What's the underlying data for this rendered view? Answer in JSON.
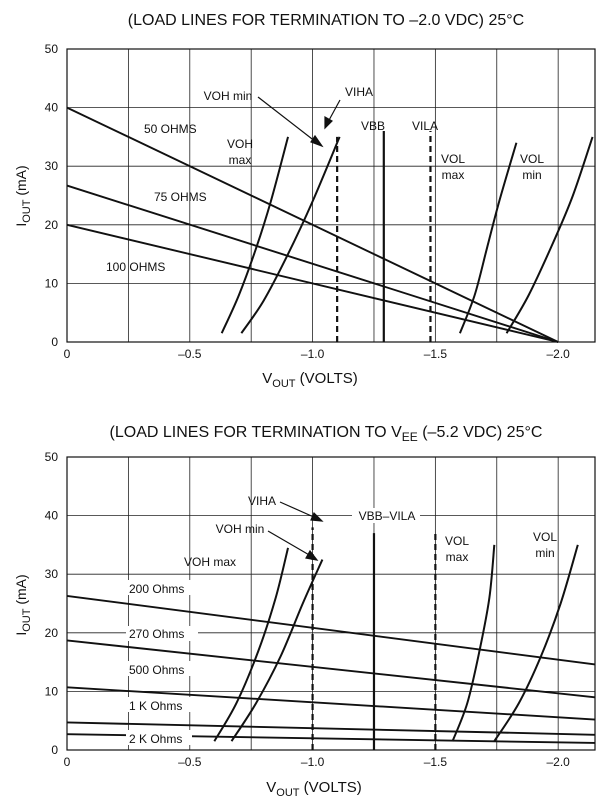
{
  "chart_data": [
    {
      "type": "line",
      "title": "(LOAD LINES FOR TERMINATION TO –2.0 VDC) 25°C",
      "xlabel": {
        "main": "V",
        "sub": "OUT",
        "rest": " (VOLTS)"
      },
      "ylabel": {
        "main": "I",
        "sub": "OUT",
        "rest": " (mA)"
      },
      "xlim": [
        0,
        -2.15
      ],
      "ylim": [
        0,
        50
      ],
      "x_ticks": [
        {
          "value": 0,
          "label": "0"
        },
        {
          "value": -0.5,
          "label": "–0.5"
        },
        {
          "value": -1.0,
          "label": "–1.0"
        },
        {
          "value": -1.5,
          "label": "–1.5"
        },
        {
          "value": -2.0,
          "label": "–2.0"
        }
      ],
      "y_ticks": [
        0,
        10,
        20,
        30,
        40,
        50
      ],
      "vgrid": [
        -0.25,
        -0.5,
        -0.75,
        -1.0,
        -1.25,
        -1.5,
        -1.75,
        -2.0
      ],
      "hgrid": [
        10,
        20,
        30,
        40
      ],
      "load_lines": [
        {
          "label": "50 OHMS",
          "x0": 0,
          "y0": 40,
          "x1": -2.0,
          "y1": 0
        },
        {
          "label": "75 OHMS",
          "x0": 0,
          "y0": 26.7,
          "x1": -2.0,
          "y1": 0
        },
        {
          "label": "100 OHMS",
          "x0": 0,
          "y0": 20,
          "x1": -2.0,
          "y1": 0
        }
      ],
      "curves": [
        {
          "label": "VOH max",
          "points": [
            [
              -0.63,
              1.5
            ],
            [
              -0.7,
              8
            ],
            [
              -0.77,
              16
            ],
            [
              -0.83,
              24
            ],
            [
              -0.9,
              35
            ]
          ]
        },
        {
          "label": "VOH min",
          "points": [
            [
              -0.71,
              1.5
            ],
            [
              -0.8,
              7
            ],
            [
              -0.9,
              15
            ],
            [
              -1.0,
              24
            ],
            [
              -1.11,
              35
            ]
          ]
        },
        {
          "label": "VOL max",
          "points": [
            [
              -1.6,
              1.5
            ],
            [
              -1.66,
              8
            ],
            [
              -1.71,
              16
            ],
            [
              -1.76,
              24
            ],
            [
              -1.83,
              34
            ]
          ]
        },
        {
          "label": "VOL min",
          "points": [
            [
              -1.79,
              1.5
            ],
            [
              -1.88,
              8
            ],
            [
              -1.98,
              17
            ],
            [
              -2.06,
              25
            ],
            [
              -2.14,
              35
            ]
          ]
        }
      ],
      "levels": [
        {
          "label": "VIHA",
          "x": -1.1,
          "style": "dashed",
          "top": 35
        },
        {
          "label": "VBB",
          "x": -1.29,
          "style": "solid",
          "top": 36
        },
        {
          "label": "VILA",
          "x": -1.48,
          "style": "dashed",
          "top": 36
        }
      ]
    },
    {
      "type": "line",
      "title": {
        "pre": "(LOAD LINES FOR TERMINATION TO V",
        "sub": "EE",
        "post": " (–5.2 VDC) 25°C"
      },
      "xlabel": {
        "main": "V",
        "sub": "OUT",
        "rest": " (VOLTS)"
      },
      "ylabel": {
        "main": "I",
        "sub": "OUT",
        "rest": " (mA)"
      },
      "xlim": [
        0,
        -2.15
      ],
      "ylim": [
        0,
        50
      ],
      "x_ticks": [
        {
          "value": 0,
          "label": "0"
        },
        {
          "value": -0.5,
          "label": "–0.5"
        },
        {
          "value": -1.0,
          "label": "–1.0"
        },
        {
          "value": -1.5,
          "label": "–1.5"
        },
        {
          "value": -2.0,
          "label": "–2.0"
        }
      ],
      "y_ticks": [
        0,
        10,
        20,
        30,
        40,
        50
      ],
      "vgrid": [
        -0.25,
        -0.5,
        -0.75,
        -1.0,
        -1.25,
        -1.5,
        -1.75,
        -2.0
      ],
      "hgrid": [
        10,
        20,
        30,
        40
      ],
      "load_lines": [
        {
          "label": "200 Ohms",
          "x0": 0,
          "y0": 26.3,
          "x1": -2.15,
          "y1": 14.6
        },
        {
          "label": "270 Ohms",
          "x0": 0,
          "y0": 18.7,
          "x1": -2.15,
          "y1": 9.0
        },
        {
          "label": "500 Ohms",
          "x0": 0,
          "y0": 10.7,
          "x1": -2.15,
          "y1": 5.2
        },
        {
          "label": "1 K Ohms",
          "x0": 0,
          "y0": 4.7,
          "x1": -2.15,
          "y1": 2.6
        },
        {
          "label": "2 K Ohms",
          "x0": 0,
          "y0": 2.7,
          "x1": -2.15,
          "y1": 1.2
        }
      ],
      "curves": [
        {
          "label": "VOH max",
          "points": [
            [
              -0.6,
              1.5
            ],
            [
              -0.69,
              8
            ],
            [
              -0.78,
              17
            ],
            [
              -0.85,
              26
            ],
            [
              -0.9,
              34.5
            ]
          ]
        },
        {
          "label": "VOH min",
          "points": [
            [
              -0.67,
              1.5
            ],
            [
              -0.77,
              8
            ],
            [
              -0.87,
              16
            ],
            [
              -0.96,
              25
            ],
            [
              -1.04,
              32.5
            ]
          ]
        },
        {
          "label": "VOL max",
          "points": [
            [
              -1.57,
              1.5
            ],
            [
              -1.63,
              8
            ],
            [
              -1.68,
              17
            ],
            [
              -1.72,
              26
            ],
            [
              -1.74,
              35
            ]
          ]
        },
        {
          "label": "VOL min",
          "points": [
            [
              -1.74,
              1.5
            ],
            [
              -1.84,
              8
            ],
            [
              -1.93,
              16
            ],
            [
              -2.01,
              25
            ],
            [
              -2.08,
              35
            ]
          ]
        }
      ],
      "levels": [
        {
          "label": "VIHA",
          "x": -1.0,
          "style": "dashed",
          "top": 38
        },
        {
          "label": "VBB–VILA",
          "x": -1.25,
          "style": "solid",
          "top": 37
        },
        {
          "label": "",
          "x": -1.5,
          "style": "dashed",
          "top": 37
        }
      ]
    }
  ]
}
